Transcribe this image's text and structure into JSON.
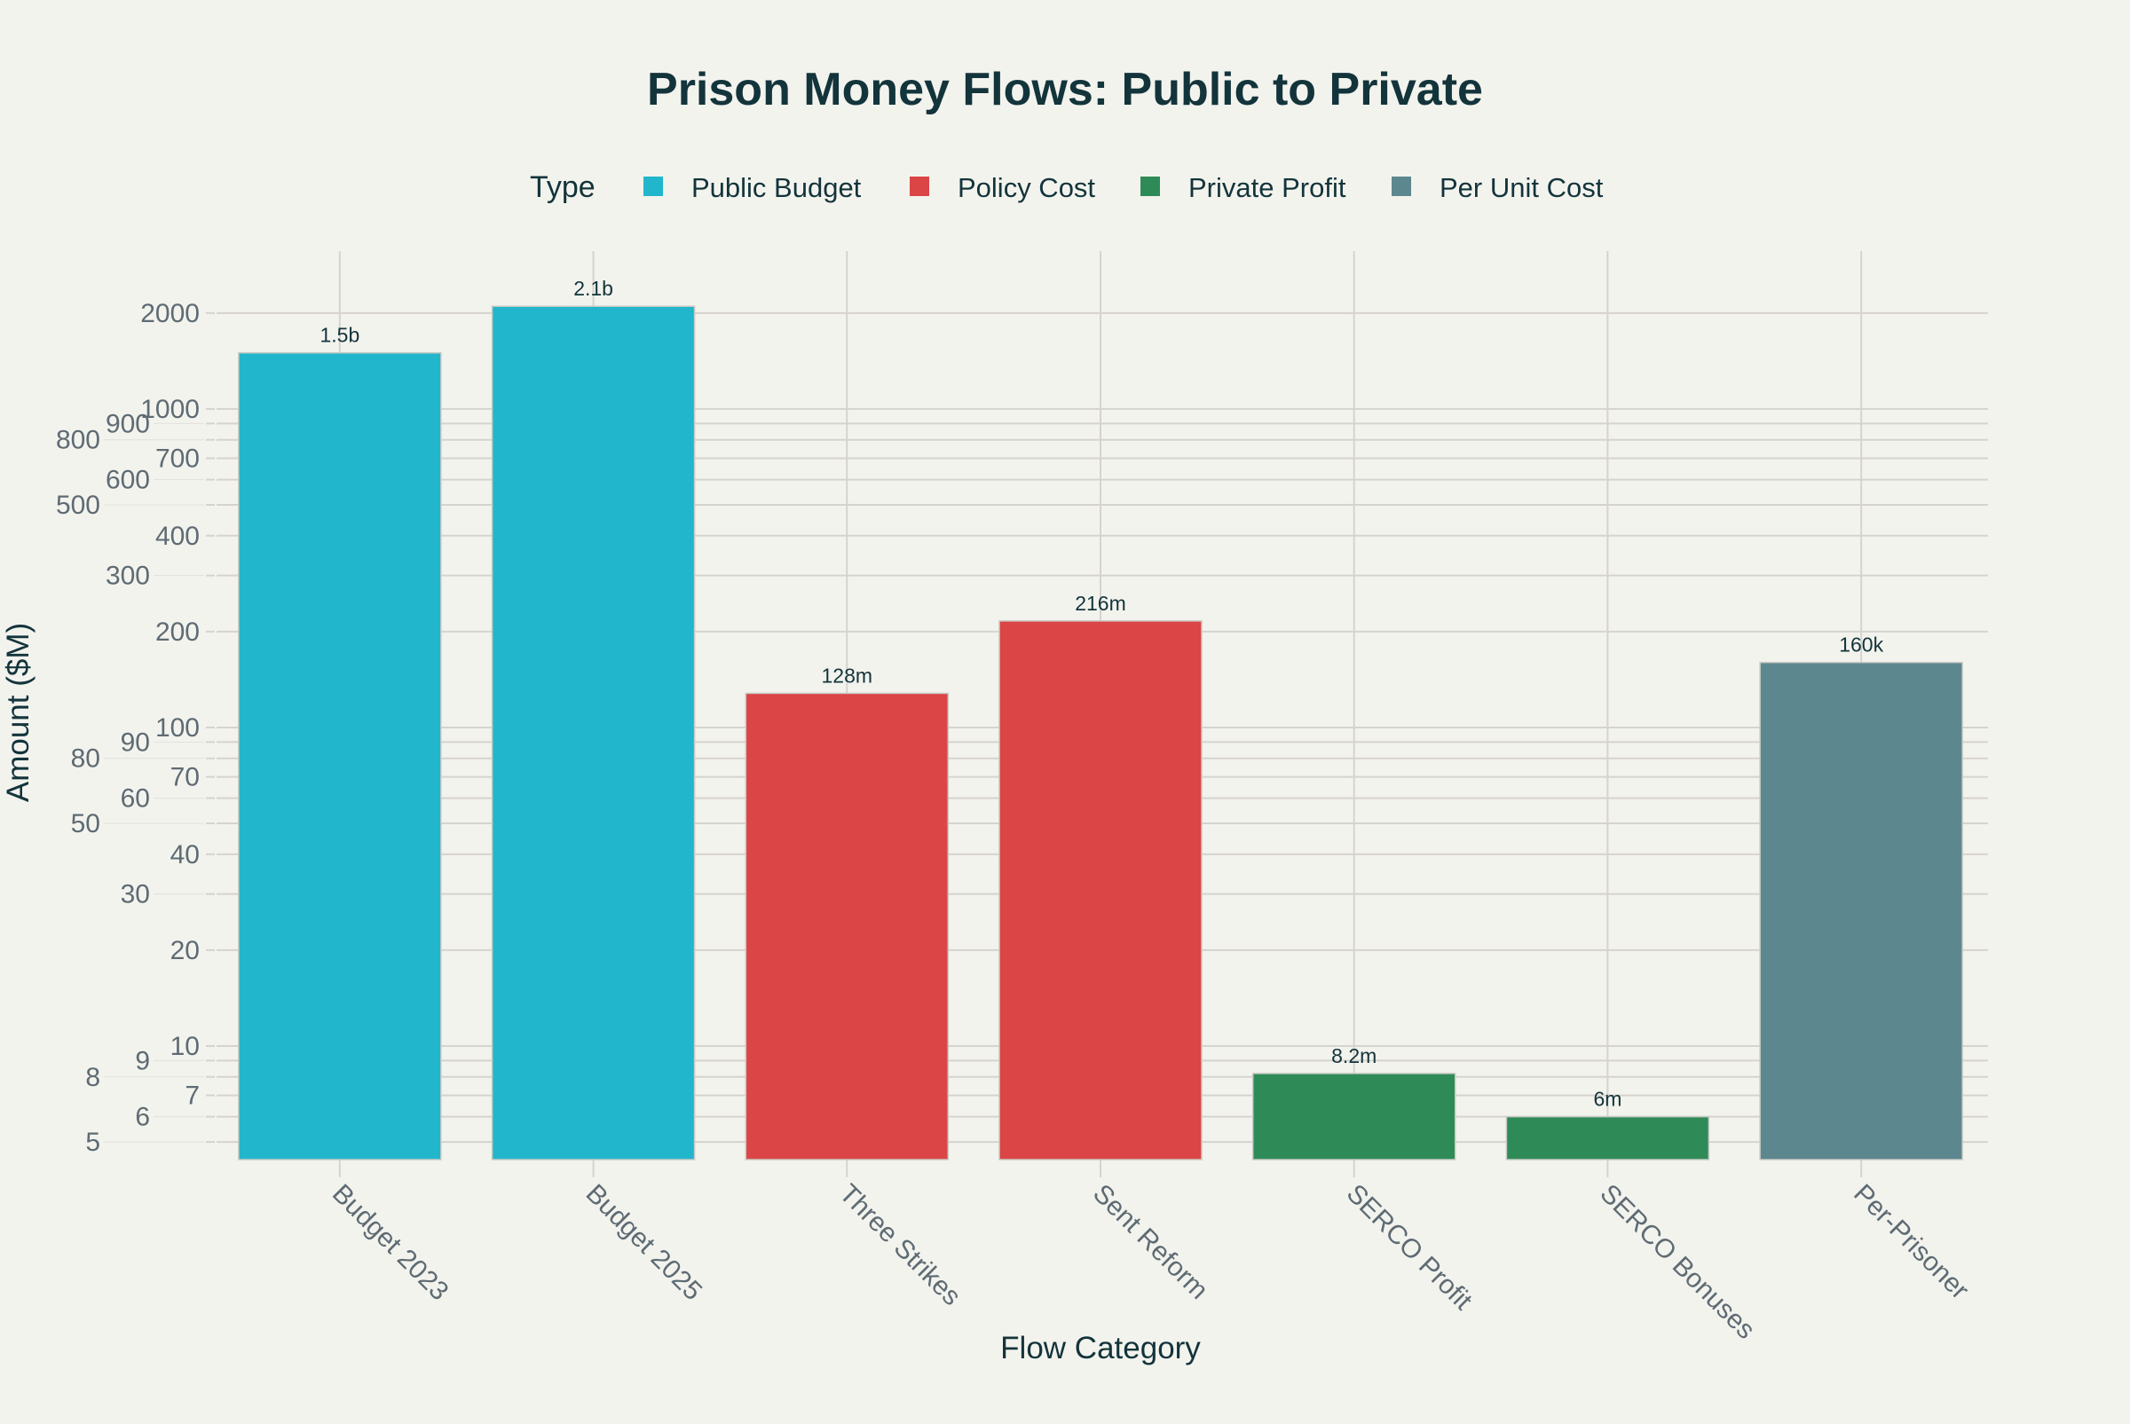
{
  "chart_data": {
    "type": "bar",
    "title": "Prison Money Flows: Public to Private",
    "xlabel": "Flow Category",
    "ylabel": "Amount ($M)",
    "yscale": "log",
    "ylim": [
      4.4,
      3130
    ],
    "grid": true,
    "legend": {
      "title": "Type",
      "placement": "top-center",
      "entries": [
        {
          "name": "Public Budget",
          "color": "#21B6CB"
        },
        {
          "name": "Policy Cost",
          "color": "#DB4545"
        },
        {
          "name": "Private Profit",
          "color": "#2E8B57"
        },
        {
          "name": "Per Unit Cost",
          "color": "#5D878F"
        }
      ]
    },
    "yticks": [
      "5",
      "6",
      "7",
      "8",
      "9",
      "10",
      "20",
      "30",
      "40",
      "50",
      "60",
      "70",
      "80",
      "90",
      "100",
      "200",
      "300",
      "400",
      "500",
      "600",
      "700",
      "800",
      "900",
      "1000",
      "2000"
    ],
    "categories": [
      "Budget 2023",
      "Budget 2025",
      "Three Strikes",
      "Sent Reform",
      "SERCO Profit",
      "SERCO Bonuses",
      "Per-Prisoner"
    ],
    "values": [
      1500,
      2100,
      128,
      216,
      8.2,
      6,
      160
    ],
    "types": [
      "Public Budget",
      "Public Budget",
      "Policy Cost",
      "Policy Cost",
      "Private Profit",
      "Private Profit",
      "Per Unit Cost"
    ],
    "data_labels": [
      "1.5b",
      "2.1b",
      "128m",
      "216m",
      "8.2m",
      "6m",
      "160k"
    ]
  }
}
